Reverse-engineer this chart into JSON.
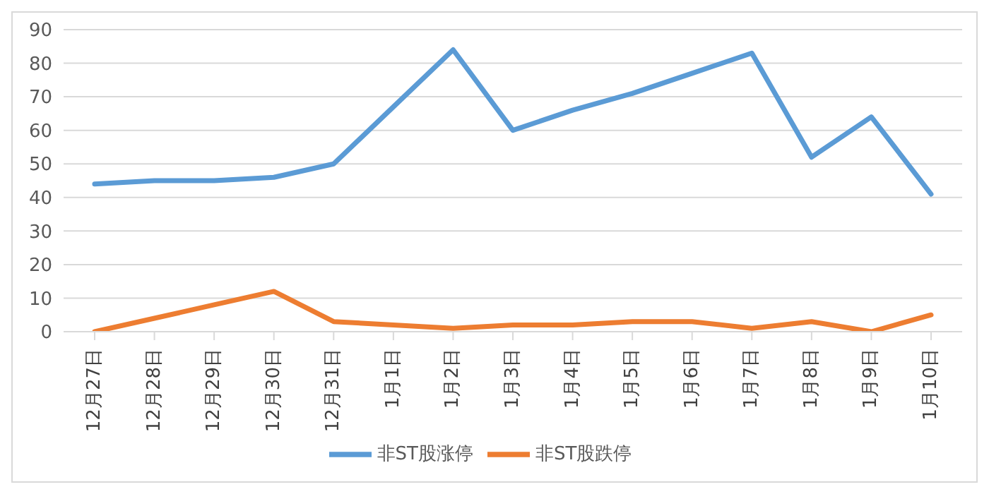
{
  "chart_data": {
    "type": "line",
    "categories": [
      "12月27日",
      "12月28日",
      "12月29日",
      "12月30日",
      "12月31日",
      "1月1日",
      "1月2日",
      "1月3日",
      "1月4日",
      "1月5日",
      "1月6日",
      "1月7日",
      "1月8日",
      "1月9日",
      "1月10日"
    ],
    "series": [
      {
        "name": "非ST股涨停",
        "color": "#5b9bd5",
        "values": [
          44,
          45,
          45,
          46,
          50,
          67,
          84,
          60,
          66,
          71,
          77,
          83,
          52,
          64,
          41
        ]
      },
      {
        "name": "非ST股跌停",
        "color": "#ed7d31",
        "values": [
          0,
          4,
          8,
          12,
          3,
          2,
          1,
          2,
          2,
          3,
          3,
          1,
          3,
          0,
          5
        ]
      }
    ],
    "ylim": [
      0,
      90
    ],
    "yticks": [
      0,
      10,
      20,
      30,
      40,
      50,
      60,
      70,
      80,
      90
    ],
    "grid": "y",
    "legend": "bottom",
    "marker": "none",
    "line_style": "solid"
  }
}
